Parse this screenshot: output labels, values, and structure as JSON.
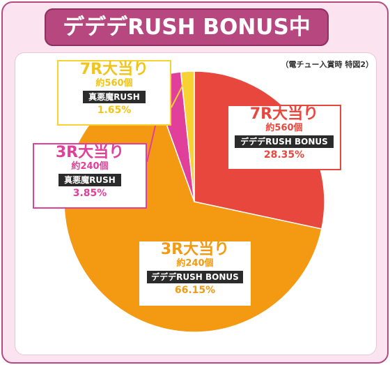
{
  "header": {
    "title": "デデデRUSH BONUS中"
  },
  "note": "（電チュー入賞時 特図2）",
  "colors": {
    "red": "#e8473e",
    "orange": "#f39a12",
    "pink": "#e0409a",
    "yellow": "#f8d233",
    "header": "#b6477f",
    "background": "#fbe4ef"
  },
  "chart_data": {
    "type": "pie",
    "slices": [
      {
        "title": "7R大当り",
        "sub": "約560個",
        "mode": "デデデRUSH BONUS",
        "value": 28.35,
        "label": "28.35%",
        "color": "#e8473e"
      },
      {
        "title": "3R大当り",
        "sub": "約240個",
        "mode": "デデデRUSH BONUS",
        "value": 66.15,
        "label": "66.15%",
        "color": "#f39a12"
      },
      {
        "title": "3R大当り",
        "sub": "約240個",
        "mode": "真悪魔RUSH",
        "value": 3.85,
        "label": "3.85%",
        "color": "#e0409a"
      },
      {
        "title": "7R大当り",
        "sub": "約560個",
        "mode": "真悪魔RUSH",
        "value": 1.65,
        "label": "1.65%",
        "color": "#f8d233"
      }
    ]
  }
}
